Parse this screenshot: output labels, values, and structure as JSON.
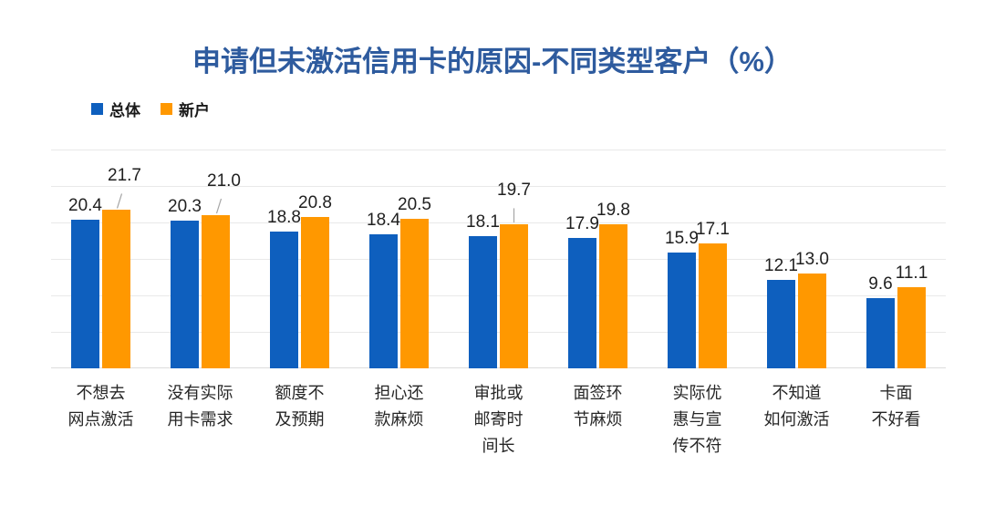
{
  "title": "申请但未激活信用卡的原因-不同类型客户（%）",
  "colors": {
    "title": "#2E5B9E",
    "series_overall": "#0E5FBE",
    "series_new": "#FF9800",
    "gridline": "#E9E9E9",
    "value_label": "#1F1F1F",
    "category_label": "#262626",
    "leader_line": "#A6A6A6"
  },
  "legend": {
    "items": [
      {
        "label": "总体",
        "color": "#0E5FBE"
      },
      {
        "label": "新户",
        "color": "#FF9800"
      }
    ]
  },
  "chart_data": {
    "type": "bar",
    "title": "申请但未激活信用卡的原因-不同类型客户（%）",
    "categories": [
      "不想去网点激活",
      "没有实际用卡需求",
      "额度不及预期",
      "担心还款麻烦",
      "审批或邮寄时间长",
      "面签环节麻烦",
      "实际优惠与宣传不符",
      "不知道如何激活",
      "卡面不好看"
    ],
    "categories_display": [
      [
        "不想去",
        "网点激活"
      ],
      [
        "没有实际",
        "用卡需求"
      ],
      [
        "额度不",
        "及预期"
      ],
      [
        "担心还",
        "款麻烦"
      ],
      [
        "审批或",
        "邮寄时",
        "间长"
      ],
      [
        "面签环",
        "节麻烦"
      ],
      [
        "实际优",
        "惠与宣",
        "传不符"
      ],
      [
        "不知道",
        "如何激活"
      ],
      [
        "卡面",
        "不好看"
      ]
    ],
    "series": [
      {
        "name": "总体",
        "color": "#0E5FBE",
        "values": [
          20.4,
          20.3,
          18.8,
          18.4,
          18.1,
          17.9,
          15.9,
          12.1,
          9.6
        ]
      },
      {
        "name": "新户",
        "color": "#FF9800",
        "values": [
          21.7,
          21.0,
          20.8,
          20.5,
          19.7,
          19.8,
          17.1,
          13.0,
          11.1
        ]
      }
    ],
    "xlabel": "",
    "ylabel": "",
    "ylim": [
      0,
      30
    ],
    "grid_step": 5,
    "grid": "on",
    "y_axis_ticks_visible": false,
    "legend_position": "top-left",
    "value_labels": "one-decimal-above-bars",
    "label_leaders": [
      {
        "series": 1,
        "index": 0,
        "type": "diagonal"
      },
      {
        "series": 1,
        "index": 1,
        "type": "diagonal"
      },
      {
        "series": 1,
        "index": 4,
        "type": "vertical"
      }
    ]
  }
}
